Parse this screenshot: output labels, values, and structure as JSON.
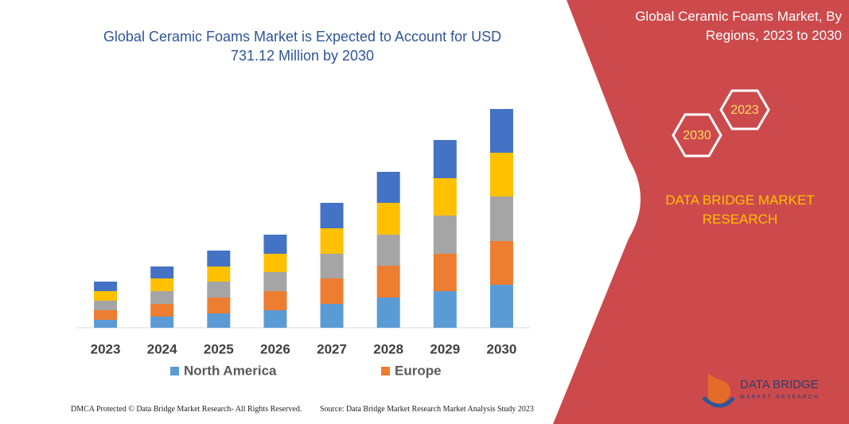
{
  "title": "Global Ceramic Foams Market is Expected to Account for USD 731.12 Million by 2030",
  "side_panel": {
    "title": "Global Ceramic Foams Market, By Regions, 2023 to 2030",
    "hex_left": "2030",
    "hex_right": "2023",
    "brand": "DATA BRIDGE MARKET RESEARCH"
  },
  "logo": {
    "name": "DATA BRIDGE",
    "tagline": "MARKET RESEARCH"
  },
  "footer": {
    "dmca": "DMCA Protected © Data Bridge Market Research-  All Rights Reserved.",
    "source": "Source: Data Bridge Market Research  Market Analysis Study 2023"
  },
  "chart_data": {
    "type": "stacked_bar",
    "categories": [
      "2023",
      "2024",
      "2025",
      "2026",
      "2027",
      "2028",
      "2029",
      "2030"
    ],
    "series": [
      {
        "name": "North America",
        "color": "#5b9bd5",
        "values": [
          10,
          14,
          18,
          22,
          30,
          38,
          46,
          54
        ]
      },
      {
        "name": "Europe",
        "color": "#ed7d31",
        "values": [
          12,
          16,
          20,
          24,
          32,
          40,
          47,
          55
        ]
      },
      {
        "color": "#a5a5a5",
        "values": [
          12,
          16,
          20,
          24,
          31,
          39,
          48,
          56
        ]
      },
      {
        "color": "#ffc000",
        "values": [
          12,
          16,
          19,
          23,
          32,
          40,
          47,
          55
        ]
      },
      {
        "color": "#4472c4",
        "values": [
          12,
          15,
          20,
          24,
          32,
          39,
          48,
          55
        ]
      }
    ],
    "ylim": [
      0,
      300
    ]
  }
}
